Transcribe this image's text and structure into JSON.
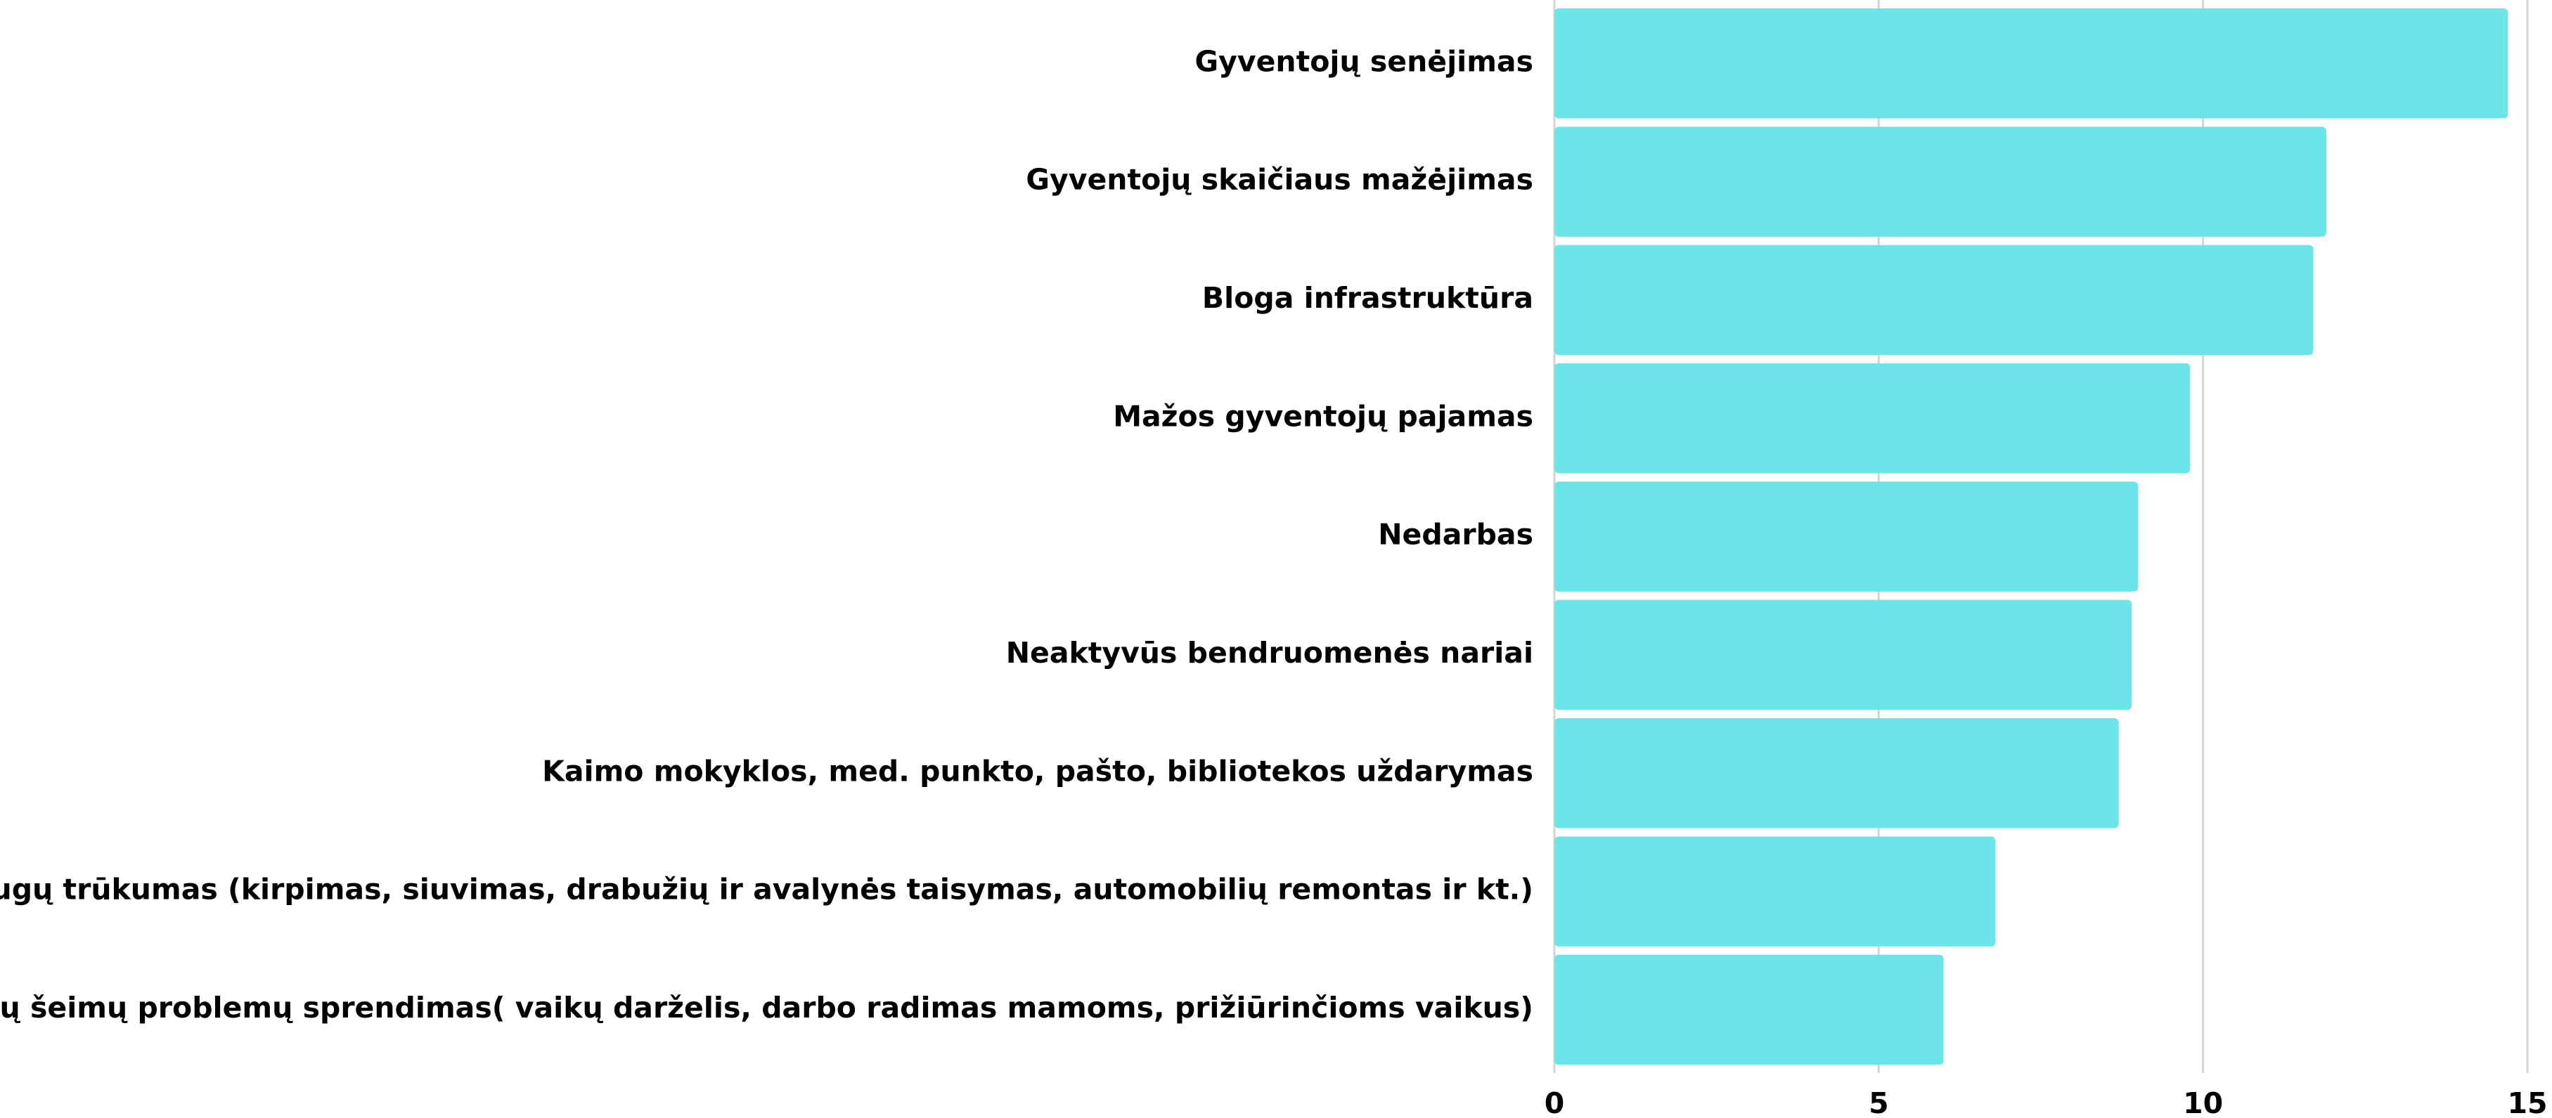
{
  "chart_data": {
    "type": "bar",
    "orientation": "horizontal",
    "categories": [
      "Gyventojų senėjimas",
      "Gyventojų skaičiaus mažėjimas",
      "Bloga infrastruktūra",
      "Mažos gyventojų pajamas",
      "Nedarbas",
      "Neaktyvūs bendruomenės nariai",
      "Kaimo mokyklos, med. punkto, pašto, bibliotekos uždarymas",
      "Paslaugų trūkumas (kirpimas, siuvimas, drabužių ir avalynės taisymas, automobilių remontas ir kt.)",
      "Jaunų šeimų problemų sprendimas( vaikų darželis, darbo radimas mamoms, prižiūrinčioms vaikus)"
    ],
    "values": [
      14.7,
      11.9,
      11.7,
      9.8,
      9.0,
      8.9,
      8.7,
      6.8,
      6.0
    ],
    "color": "#6ce5e8",
    "xlim": [
      0,
      15
    ],
    "xticks": [
      0,
      5,
      10,
      15
    ],
    "grid": true
  }
}
